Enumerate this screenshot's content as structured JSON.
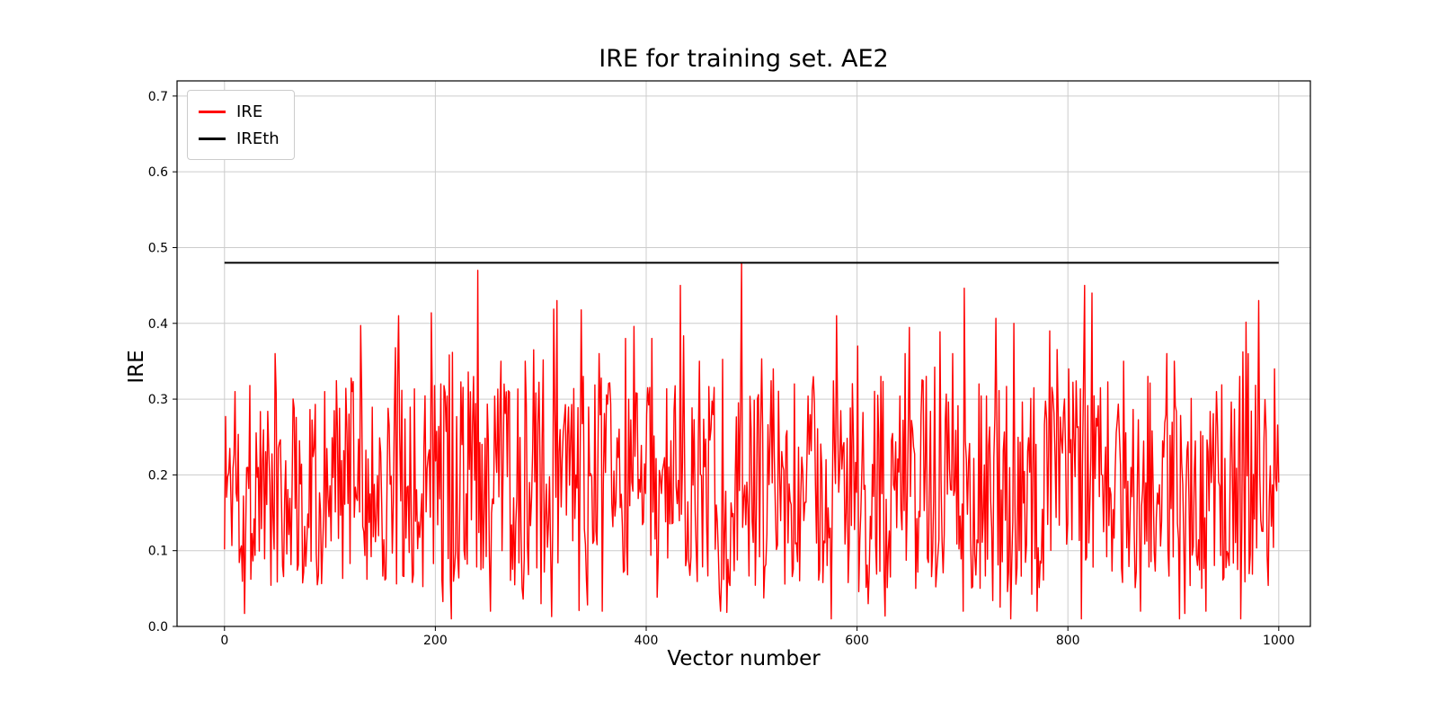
{
  "chart_data": {
    "type": "line",
    "title": "IRE for training set. AE2",
    "xlabel": "Vector number",
    "ylabel": "IRE",
    "x_ticks": [
      0,
      200,
      400,
      600,
      800,
      1000
    ],
    "x_tick_labels": [
      "0",
      "200",
      "400",
      "600",
      "800",
      "1000"
    ],
    "y_ticks": [
      0.0,
      0.1,
      0.2,
      0.3,
      0.4,
      0.5,
      0.6,
      0.7
    ],
    "y_tick_labels": [
      "0.0",
      "0.1",
      "0.2",
      "0.3",
      "0.4",
      "0.5",
      "0.6",
      "0.7"
    ],
    "xlim": [
      -45,
      1030
    ],
    "ylim": [
      0,
      0.72
    ],
    "grid": true,
    "grid_color": "#cccccc",
    "axes_color": "#000000",
    "legend": {
      "position": "upper-left",
      "entries": [
        {
          "label": "IRE",
          "color": "#ff0000"
        },
        {
          "label": "IREth",
          "color": "#000000"
        }
      ]
    },
    "series": [
      {
        "name": "IRE",
        "kind": "noisy-line",
        "color": "#ff0000",
        "linewidth": 1.4,
        "n_points": 1000,
        "x_start": 0,
        "x_end": 1000,
        "seed": 1337,
        "base_range": [
          0.05,
          0.33
        ],
        "spike_prob": 0.028,
        "spike_range": [
          0.33,
          0.45
        ],
        "dip_prob": 0.015,
        "dip_range": [
          0.01,
          0.06
        ],
        "approx_mean": 0.18,
        "observed_min": 0.01,
        "observed_max": 0.48,
        "notable_peaks": [
          [
            10,
            0.31
          ],
          [
            48,
            0.36
          ],
          [
            95,
            0.31
          ],
          [
            130,
            0.31
          ],
          [
            165,
            0.41
          ],
          [
            205,
            0.32
          ],
          [
            240,
            0.47
          ],
          [
            262,
            0.35
          ],
          [
            285,
            0.35
          ],
          [
            315,
            0.43
          ],
          [
            340,
            0.33
          ],
          [
            355,
            0.36
          ],
          [
            380,
            0.38
          ],
          [
            405,
            0.38
          ],
          [
            432,
            0.45
          ],
          [
            450,
            0.35
          ],
          [
            470,
            0.32
          ],
          [
            490,
            0.48
          ],
          [
            520,
            0.34
          ],
          [
            540,
            0.32
          ],
          [
            580,
            0.41
          ],
          [
            600,
            0.37
          ],
          [
            622,
            0.33
          ],
          [
            645,
            0.36
          ],
          [
            665,
            0.33
          ],
          [
            690,
            0.36
          ],
          [
            715,
            0.32
          ],
          [
            748,
            0.4
          ],
          [
            782,
            0.39
          ],
          [
            800,
            0.34
          ],
          [
            815,
            0.45
          ],
          [
            822,
            0.44
          ],
          [
            852,
            0.35
          ],
          [
            875,
            0.33
          ],
          [
            893,
            0.36
          ],
          [
            900,
            0.35
          ],
          [
            940,
            0.31
          ],
          [
            962,
            0.33
          ],
          [
            980,
            0.43
          ],
          [
            995,
            0.34
          ]
        ],
        "notable_dips": [
          [
            215,
            0.01
          ],
          [
            252,
            0.02
          ],
          [
            300,
            0.03
          ],
          [
            358,
            0.02
          ],
          [
            470,
            0.02
          ],
          [
            575,
            0.01
          ],
          [
            610,
            0.03
          ],
          [
            700,
            0.02
          ],
          [
            745,
            0.01
          ],
          [
            770,
            0.02
          ],
          [
            812,
            0.01
          ],
          [
            868,
            0.02
          ],
          [
            905,
            0.01
          ],
          [
            930,
            0.02
          ],
          [
            963,
            0.01
          ]
        ]
      },
      {
        "name": "IREth",
        "kind": "hline",
        "color": "#000000",
        "linewidth": 2,
        "y": 0.48,
        "x_start": 0,
        "x_end": 1000
      }
    ]
  }
}
